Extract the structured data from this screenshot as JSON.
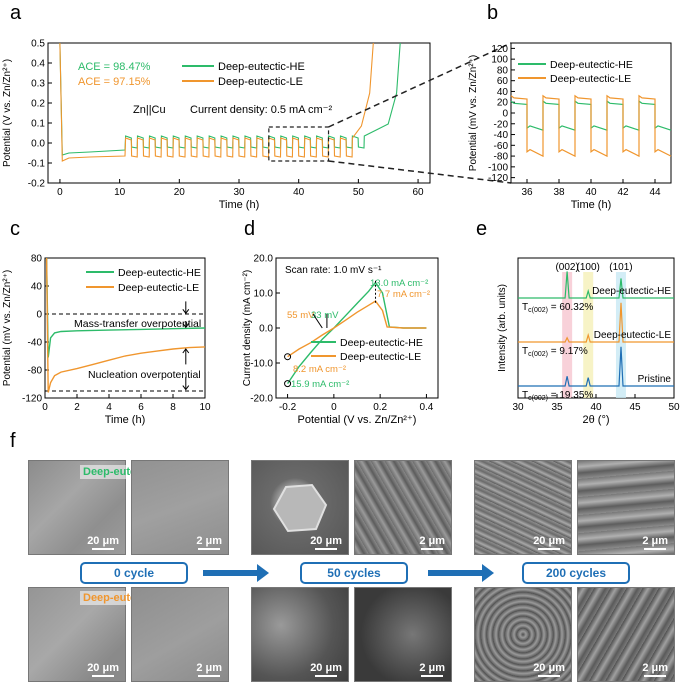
{
  "panel_labels": {
    "a": "a",
    "b": "b",
    "c": "c",
    "d": "d",
    "e": "e",
    "f": "f"
  },
  "colors": {
    "he": "#2dbb6a",
    "le": "#f0962e",
    "blue": "#1f6fb5",
    "red": "#e23a3a"
  },
  "chart_data": [
    {
      "id": "a",
      "type": "line",
      "xlabel": "Time (h)",
      "ylabel": "Potential (V vs. Zn/Zn²⁺)",
      "xlim": [
        -2,
        62
      ],
      "ylim": [
        -0.2,
        0.5
      ],
      "xticks": [
        0,
        10,
        20,
        30,
        40,
        50,
        60
      ],
      "yticks": [
        -0.2,
        -0.1,
        0.0,
        0.1,
        0.2,
        0.3,
        0.4,
        0.5
      ],
      "series": [
        {
          "name": "Deep-eutectic-HE",
          "ace": "ACE = 98.47%",
          "cycling_start_h": 11,
          "cycling_end_h": 51,
          "failure_h": 57,
          "half_period_h": 1,
          "upper_V": 0.035,
          "lower_V": -0.02
        },
        {
          "name": "Deep-eutectic-LE",
          "ace": "ACE = 97.15%",
          "cycling_start_h": 11,
          "cycling_end_h": 49,
          "failure_h": 52.5,
          "half_period_h": 1,
          "upper_V": 0.025,
          "lower_V": -0.065
        }
      ],
      "annotations": {
        "cell": "Zn||Cu",
        "current": "Current density: 0.5 mA cm⁻²"
      }
    },
    {
      "id": "b",
      "type": "line",
      "xlabel": "Time (h)",
      "ylabel": "Potential (mV vs. Zn/Zn²⁺)",
      "xlim": [
        35,
        45
      ],
      "ylim": [
        -130,
        130
      ],
      "xticks": [
        36,
        38,
        40,
        42,
        44
      ],
      "yticks": [
        -120,
        -100,
        -80,
        -60,
        -40,
        -20,
        0,
        20,
        40,
        60,
        80,
        100,
        120
      ],
      "series": [
        {
          "name": "Deep-eutectic-HE",
          "upper_mV": 22,
          "lower_mV": -28
        },
        {
          "name": "Deep-eutectic-LE",
          "upper_mV": 32,
          "lower_mV": -72
        }
      ]
    },
    {
      "id": "c",
      "type": "line",
      "xlabel": "Time (h)",
      "ylabel": "Potential (mV vs. Zn/Zn²⁺)",
      "xlim": [
        0,
        10
      ],
      "ylim": [
        -120,
        80
      ],
      "xticks": [
        0,
        2,
        4,
        6,
        8,
        10
      ],
      "yticks": [
        -120,
        -80,
        -40,
        0,
        40,
        80
      ],
      "series": [
        {
          "name": "Deep-eutectic-HE",
          "t": [
            0.1,
            0.2,
            0.35,
            0.6,
            1,
            2,
            4,
            6,
            8,
            10
          ],
          "v": [
            80,
            -62,
            -34,
            -27,
            -25,
            -24,
            -23,
            -22,
            -21,
            -20
          ]
        },
        {
          "name": "Deep-eutectic-LE",
          "t": [
            0.1,
            0.2,
            0.35,
            0.6,
            1,
            2,
            3,
            4,
            5,
            6,
            7,
            8,
            9,
            10
          ],
          "v": [
            80,
            -112,
            -98,
            -88,
            -83,
            -78,
            -72,
            -66,
            -60,
            -56,
            -53,
            -50,
            -48,
            -47
          ]
        }
      ],
      "annotations": {
        "mass": "Mass-transfer overpotential",
        "nucleation": "Nucleation overpotential",
        "ref_lines_mV": [
          0,
          -110
        ]
      }
    },
    {
      "id": "d",
      "type": "line",
      "xlabel": "Potential (V vs. Zn/Zn²⁺)",
      "ylabel": "Current density (mA cm⁻²)",
      "xlim": [
        -0.25,
        0.45
      ],
      "ylim": [
        -20,
        20
      ],
      "xticks": [
        -0.2,
        0.0,
        0.2,
        0.4
      ],
      "yticks": [
        -20,
        -10,
        0,
        10,
        20
      ],
      "scan_rate": "Scan rate: 1.0 mV s⁻¹",
      "series": [
        {
          "name": "Deep-eutectic-HE",
          "x": [
            -0.2,
            -0.15,
            -0.1,
            -0.05,
            0.0,
            0.05,
            0.1,
            0.15,
            0.18,
            0.21,
            0.24,
            0.3,
            0.4
          ],
          "y": [
            -15.9,
            -11,
            -7,
            -3.2,
            0,
            3.5,
            7,
            10.5,
            13,
            10,
            0.3,
            0,
            0
          ]
        },
        {
          "name": "Deep-eutectic-LE",
          "x": [
            -0.2,
            -0.15,
            -0.1,
            -0.05,
            0.0,
            0.05,
            0.1,
            0.15,
            0.18,
            0.21,
            0.23,
            0.3,
            0.4
          ],
          "y": [
            -8.2,
            -6,
            -4.2,
            -2,
            0,
            2.2,
            4.5,
            6.5,
            7.7,
            5,
            0.3,
            0,
            0
          ]
        }
      ],
      "annotations": [
        {
          "text": "13.0 mA cm⁻²",
          "series": "he"
        },
        {
          "text": "7.7 mA cm⁻²",
          "series": "le"
        },
        {
          "text": "55 mV",
          "series": "le"
        },
        {
          "text": "33 mV",
          "series": "he"
        },
        {
          "text": "8.2 mA cm⁻²",
          "series": "le"
        },
        {
          "text": "15.9 mA cm⁻²",
          "series": "he"
        }
      ]
    },
    {
      "id": "e",
      "type": "line",
      "xlabel": "2θ (°)",
      "ylabel": "Intensity (arb. units)",
      "xlim": [
        30,
        50
      ],
      "xticks": [
        30,
        35,
        40,
        45,
        50
      ],
      "peaks": [
        {
          "label": "(002)",
          "two_theta": 36.3
        },
        {
          "label": "(100)",
          "two_theta": 39.0
        },
        {
          "label": "(101)",
          "two_theta": 43.2
        }
      ],
      "series": [
        {
          "name": "Deep-eutectic-HE",
          "tc": "Tₑ₍₀₀₂₎ = 60.32%",
          "tc_label": "T",
          "tc_sub": "c(002)",
          "tc_value": "= 60.32%",
          "heights": [
            0.95,
            0.25,
            0.7
          ]
        },
        {
          "name": "Deep-eutectic-LE",
          "tc_label": "T",
          "tc_sub": "c(002)",
          "tc_value": "= 9.17%",
          "heights": [
            0.15,
            0.25,
            1.4
          ]
        },
        {
          "name": "Pristine",
          "tc_label": "T",
          "tc_sub": "c(002)",
          "tc_value": "= 19.35%",
          "heights": [
            0.35,
            0.3,
            1.4
          ]
        }
      ]
    }
  ],
  "panel_f": {
    "he_label": "Deep-eutectic-HE",
    "le_label": "Deep-eutectic-LE",
    "stages": [
      "0 cycle",
      "50 cycles",
      "200 cycles"
    ],
    "scale_bars": [
      "20 μm",
      "2 μm",
      "20 μm",
      "2 μm",
      "20 μm",
      "2 μm"
    ]
  }
}
